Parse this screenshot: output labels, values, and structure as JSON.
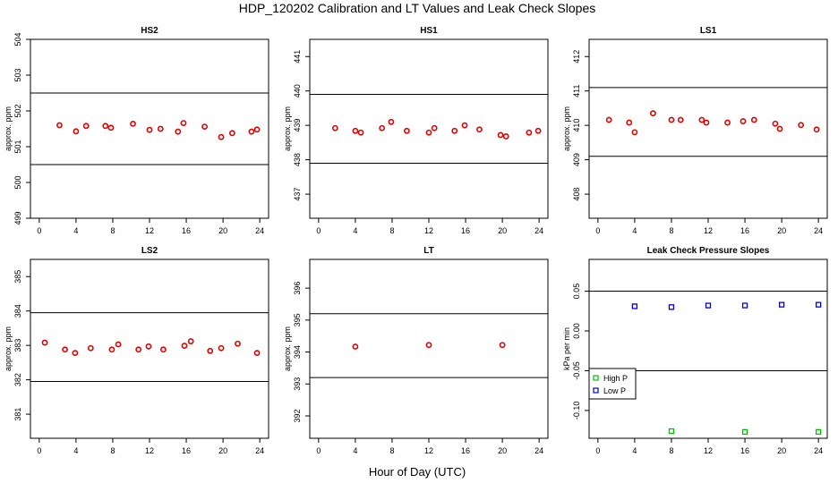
{
  "title": "HDP_120202  Calibration and LT Values and Leak Check Slopes",
  "xlabel_common": "Hour of Day (UTC)",
  "colors": {
    "calibration_points": "#e00000",
    "high_p": "#00c000",
    "low_p": "#0000dd",
    "reference_lines": "#000000"
  },
  "chart_data": [
    {
      "type": "scatter",
      "title": "HS2",
      "ylabel": "approx. ppm",
      "xlim": [
        0,
        24
      ],
      "ylim": [
        499,
        504
      ],
      "xticks": [
        0,
        4,
        8,
        12,
        16,
        20,
        24
      ],
      "yticks": [
        499,
        500,
        501,
        502,
        503,
        504
      ],
      "reference_lines": [
        502.5,
        500.5
      ],
      "series": [
        {
          "x": [
            2.2,
            4.0,
            5.1,
            7.2,
            7.8,
            10.2,
            12.0,
            13.2,
            15.1,
            15.7,
            18.0,
            19.8,
            21.0,
            23.1,
            23.7
          ],
          "y": [
            501.6,
            501.43,
            501.58,
            501.58,
            501.53,
            501.64,
            501.47,
            501.5,
            501.42,
            501.66,
            501.56,
            501.27,
            501.38,
            501.42,
            501.48
          ]
        }
      ]
    },
    {
      "type": "scatter",
      "title": "HS1",
      "ylabel": "approx. ppm",
      "xlim": [
        0,
        24
      ],
      "ylim": [
        436.3,
        441.5
      ],
      "xticks": [
        0,
        4,
        8,
        12,
        16,
        20,
        24
      ],
      "yticks": [
        437,
        438,
        439,
        440,
        441
      ],
      "reference_lines": [
        439.9,
        437.9
      ],
      "series": [
        {
          "x": [
            1.8,
            4.0,
            4.6,
            6.9,
            7.9,
            9.6,
            12.0,
            12.6,
            14.8,
            15.9,
            17.5,
            19.8,
            20.4,
            22.9,
            23.9
          ],
          "y": [
            438.92,
            438.84,
            438.79,
            438.92,
            439.1,
            438.84,
            438.79,
            438.92,
            438.84,
            439.0,
            438.88,
            438.72,
            438.68,
            438.79,
            438.84
          ]
        }
      ]
    },
    {
      "type": "scatter",
      "title": "LS1",
      "ylabel": "approx. ppm",
      "xlim": [
        0,
        24
      ],
      "ylim": [
        407.3,
        412.5
      ],
      "xticks": [
        0,
        4,
        8,
        12,
        16,
        20,
        24
      ],
      "yticks": [
        408,
        409,
        410,
        411,
        412
      ],
      "reference_lines": [
        411.1,
        409.1
      ],
      "series": [
        {
          "x": [
            1.2,
            3.4,
            4.0,
            6.0,
            8.0,
            9.0,
            11.3,
            11.8,
            14.1,
            15.8,
            17.0,
            19.3,
            19.8,
            22.1,
            23.8
          ],
          "y": [
            410.16,
            410.08,
            409.8,
            410.35,
            410.16,
            410.16,
            410.16,
            410.08,
            410.08,
            410.12,
            410.16,
            410.05,
            409.9,
            410.01,
            409.88
          ]
        }
      ]
    },
    {
      "type": "scatter",
      "title": "LS2",
      "ylabel": "approx. ppm",
      "xlim": [
        0,
        24
      ],
      "ylim": [
        380.3,
        385.5
      ],
      "xticks": [
        0,
        4,
        8,
        12,
        16,
        20,
        24
      ],
      "yticks": [
        381,
        382,
        383,
        384,
        385
      ],
      "reference_lines": [
        383.95,
        381.95
      ],
      "series": [
        {
          "x": [
            0.6,
            2.8,
            3.9,
            5.6,
            7.9,
            8.6,
            10.8,
            11.9,
            13.5,
            15.8,
            16.5,
            18.6,
            19.8,
            21.6,
            23.7
          ],
          "y": [
            383.08,
            382.88,
            382.78,
            382.92,
            382.88,
            383.03,
            382.88,
            382.97,
            382.88,
            382.99,
            383.12,
            382.84,
            382.92,
            383.05,
            382.78
          ]
        }
      ]
    },
    {
      "type": "scatter",
      "title": "LT",
      "ylabel": "approx. ppm",
      "xlim": [
        0,
        24
      ],
      "ylim": [
        391.3,
        396.9
      ],
      "xticks": [
        0,
        4,
        8,
        12,
        16,
        20,
        24
      ],
      "yticks": [
        392,
        393,
        394,
        395,
        396
      ],
      "reference_lines": [
        395.2,
        393.2
      ],
      "series": [
        {
          "x": [
            4.0,
            12.0,
            20.0
          ],
          "y": [
            394.17,
            394.22,
            394.22
          ]
        }
      ]
    },
    {
      "type": "scatter",
      "title": "Leak Check Pressure Slopes",
      "ylabel": "kPa per min",
      "xlim": [
        0,
        24
      ],
      "ylim": [
        -0.135,
        0.09
      ],
      "xticks": [
        0,
        4,
        8,
        12,
        16,
        20,
        24
      ],
      "yticks": [
        -0.1,
        -0.05,
        0.0,
        0.05
      ],
      "ytick_labels": [
        "-0.10",
        "-0.05",
        "0.00",
        "0.05"
      ],
      "reference_lines": [
        0.05,
        -0.05
      ],
      "legend_position": "bottom-left",
      "series": [
        {
          "name": "High P",
          "color": "#00c000",
          "x": [
            8.0,
            16.0,
            24.0
          ],
          "y": [
            -0.126,
            -0.127,
            -0.127
          ]
        },
        {
          "name": "Low P",
          "color": "#0000dd",
          "x": [
            4.0,
            8.0,
            12.0,
            16.0,
            20.0,
            24.0
          ],
          "y": [
            0.031,
            0.03,
            0.032,
            0.032,
            0.033,
            0.033
          ]
        }
      ]
    }
  ]
}
